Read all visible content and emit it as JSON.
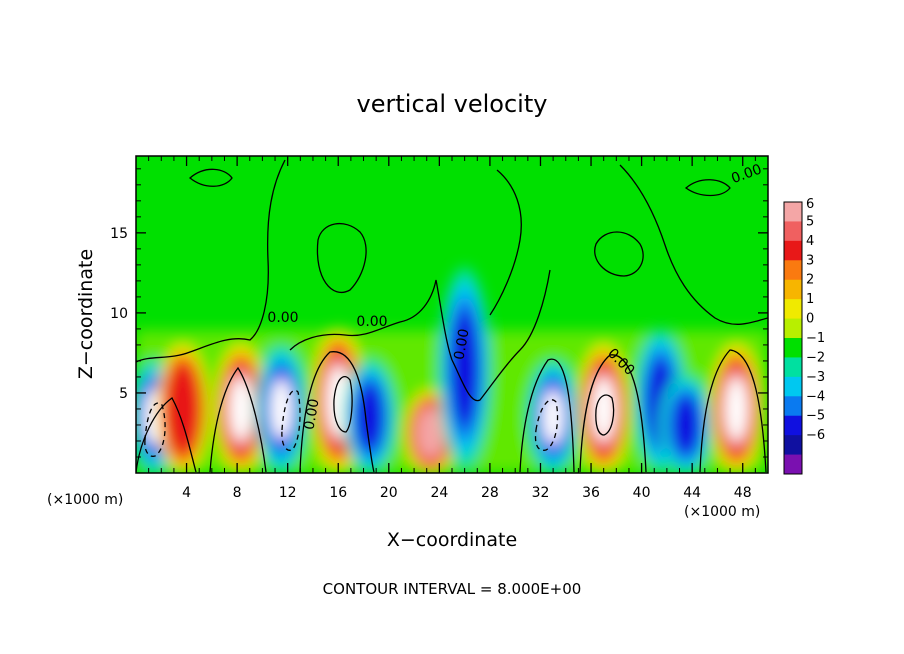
{
  "chart_data": {
    "type": "heatmap",
    "title": "vertical velocity",
    "xlabel": "X−coordinate",
    "ylabel": "Z−coordinate",
    "x_unit": "(×1000 m)",
    "y_unit": "(×1000 m)",
    "x_ticks": [
      4,
      8,
      12,
      16,
      20,
      24,
      28,
      32,
      36,
      40,
      44,
      48
    ],
    "y_ticks": [
      5,
      10,
      15
    ],
    "xlim": [
      0,
      50
    ],
    "ylim": [
      0,
      19.8
    ],
    "contour_interval_text": "CONTOUR INTERVAL = 8.000E+00",
    "contour_label": "0.00",
    "colorbar": {
      "levels": [
        6,
        5,
        4,
        3,
        2,
        1,
        0,
        -1,
        -2,
        -3,
        -4,
        -5,
        -6
      ],
      "colors": [
        "#f4a6a6",
        "#f06060",
        "#e81818",
        "#fa7a10",
        "#f7b500",
        "#f0ea00",
        "#b8ef00",
        "#00e000",
        "#00e0a0",
        "#00c8f0",
        "#0a7af0",
        "#1010e0",
        "#1010a0",
        "#7a10b0"
      ]
    },
    "cells": [
      {
        "x": 1.5,
        "z": 3.5,
        "w": -7
      },
      {
        "x": 3.7,
        "z": 4.0,
        "w": 4.5
      },
      {
        "x": 8.3,
        "z": 4.0,
        "w": 7
      },
      {
        "x": 11.5,
        "z": 4.0,
        "w": -7
      },
      {
        "x": 16.0,
        "z": 4.5,
        "w": 7
      },
      {
        "x": 18.5,
        "z": 3.5,
        "w": -6
      },
      {
        "x": 23.3,
        "z": 2.5,
        "w": 5
      },
      {
        "x": 26.0,
        "z": 6.5,
        "w": -5
      },
      {
        "x": 33.0,
        "z": 3.5,
        "w": -7
      },
      {
        "x": 37.0,
        "z": 4.0,
        "w": 7
      },
      {
        "x": 41.5,
        "z": 4.5,
        "w": -6
      },
      {
        "x": 43.5,
        "z": 3.0,
        "w": -5
      },
      {
        "x": 47.5,
        "z": 4.0,
        "w": 7
      }
    ]
  }
}
